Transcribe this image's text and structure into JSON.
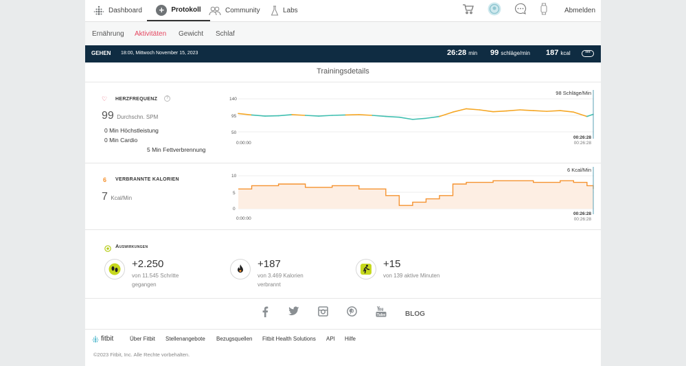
{
  "nav": {
    "dashboard": "Dashboard",
    "protokoll": "Protokoll",
    "community": "Community",
    "labs": "Labs",
    "logout": "Abmelden"
  },
  "subnav": {
    "items": [
      "Ernährung",
      "Aktivitäten",
      "Gewicht",
      "Schlaf"
    ],
    "active": "Aktivitäten"
  },
  "activity": {
    "type": "GEHEN",
    "datetime": "18:00, Mittwoch November 15, 2023",
    "duration_value": "26:28",
    "duration_unit": "min",
    "hr_value": "99",
    "hr_unit": "schläge/min",
    "cal_value": "187",
    "cal_unit": "kcal",
    "more": "•••"
  },
  "details_title": "Trainingsdetails",
  "heart": {
    "label": "HERZFREQUENZ",
    "icon_glyph": "♡",
    "help": "?",
    "avg_value": "99",
    "avg_unit": "Durchschn. SPM",
    "zone_peak": "0 Min Höchstleistung",
    "zone_cardio": "0 Min Cardio",
    "zone_fat": "5 Min Fettverbrennung",
    "cursor_label": "98 Schläge/Min",
    "cursor_time_a": "00:26:28",
    "cursor_time_b": "00:26:28",
    "start_time": "0:00:00"
  },
  "calories": {
    "label": "VERBRANNTE KALORIEN",
    "icon_glyph": "6",
    "value": "7",
    "unit": "Kcal/Min",
    "cursor_label": "6 Kcal/Min",
    "cursor_time_a": "00:26:28",
    "cursor_time_b": "00:26:28",
    "start_time": "0:00:00"
  },
  "impact": {
    "title": "Auswirkungen",
    "items": [
      {
        "value": "+2.250",
        "desc_1": "von 11.545 Schritte",
        "desc_2": "gegangen"
      },
      {
        "value": "+187",
        "desc_1": "von 3.469 Kalorien",
        "desc_2": "verbrannt"
      },
      {
        "value": "+15",
        "desc_1": "von 139 aktive Minuten",
        "desc_2": ""
      }
    ]
  },
  "social": {
    "blog": "BLOG"
  },
  "footer": {
    "logo_text": "fitbit",
    "links": [
      "Über Fitbit",
      "Stellenangebote",
      "Bezugsquellen",
      "Fitbit Health Solutions",
      "API",
      "Hilfe"
    ],
    "copyright": "©2023 Fitbit, Inc. Alle Rechte vorbehalten."
  },
  "colors": {
    "nav_active_underline": "#333333",
    "subnav_active": "#e4455f",
    "activity_bar": "#0f2c42",
    "hr_fat_burn": "#f5a623",
    "hr_normal": "#3fbfb0",
    "calories_line": "#f5922f",
    "calories_fill": "#fdeee3"
  },
  "chart_data": [
    {
      "type": "line",
      "title": "Herzfrequenz",
      "ylabel": "Schläge/Min",
      "yticks": [
        50,
        95,
        140
      ],
      "ylim": [
        40,
        150
      ],
      "xlim": [
        0,
        26.47
      ],
      "x_unit": "min",
      "thresholds": [
        {
          "name": "Fettverbrennung",
          "from": 96
        }
      ],
      "series": [
        {
          "name": "Herzfrequenz",
          "x": [
            0,
            1,
            2,
            3,
            4,
            5,
            6,
            7,
            8,
            9,
            10,
            11,
            12,
            13,
            14,
            15,
            16,
            17,
            18,
            19,
            20,
            21,
            22,
            23,
            24,
            25,
            26,
            26.47
          ],
          "values": [
            100,
            96,
            93,
            94,
            97,
            95,
            93,
            95,
            96,
            97,
            95,
            92,
            90,
            84,
            87,
            92,
            104,
            113,
            110,
            105,
            107,
            110,
            108,
            106,
            108,
            104,
            92,
            98
          ]
        }
      ]
    },
    {
      "type": "area",
      "title": "Verbrannte Kalorien",
      "ylabel": "Kcal/Min",
      "yticks": [
        0,
        5,
        10
      ],
      "ylim": [
        -1,
        11
      ],
      "xlim": [
        0,
        26.47
      ],
      "x_unit": "min",
      "series": [
        {
          "name": "Kalorien",
          "x": [
            0,
            1,
            2,
            3,
            4,
            5,
            6,
            7,
            8,
            9,
            10,
            11,
            12,
            13,
            14,
            15,
            16,
            17,
            18,
            19,
            20,
            21,
            22,
            23,
            24,
            25,
            26,
            26.47
          ],
          "values": [
            6,
            7,
            7,
            7.5,
            7.5,
            6.5,
            6.5,
            7,
            7,
            6,
            6,
            4,
            1,
            2,
            3,
            4,
            7.5,
            8,
            8,
            8.5,
            8.5,
            8.5,
            8,
            8,
            8.5,
            8,
            7,
            6
          ]
        }
      ]
    }
  ]
}
